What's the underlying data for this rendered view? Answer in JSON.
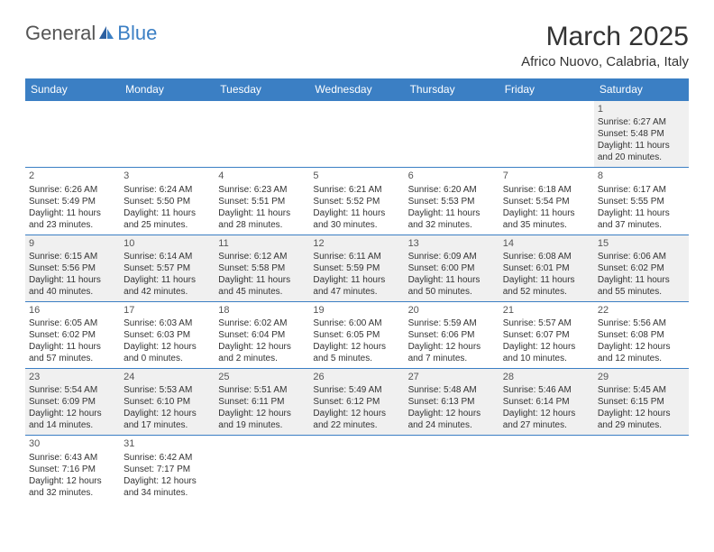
{
  "brand": {
    "part1": "General",
    "part2": "Blue"
  },
  "title": "March 2025",
  "location": "Africo Nuovo, Calabria, Italy",
  "colors": {
    "header_bg": "#3b7fc4",
    "header_text": "#ffffff",
    "border": "#3b7fc4",
    "shade": "#f0f0f0",
    "text": "#333333"
  },
  "day_headers": [
    "Sunday",
    "Monday",
    "Tuesday",
    "Wednesday",
    "Thursday",
    "Friday",
    "Saturday"
  ],
  "weeks": [
    [
      null,
      null,
      null,
      null,
      null,
      null,
      {
        "n": "1",
        "sr": "Sunrise: 6:27 AM",
        "ss": "Sunset: 5:48 PM",
        "dl": "Daylight: 11 hours and 20 minutes."
      }
    ],
    [
      {
        "n": "2",
        "sr": "Sunrise: 6:26 AM",
        "ss": "Sunset: 5:49 PM",
        "dl": "Daylight: 11 hours and 23 minutes."
      },
      {
        "n": "3",
        "sr": "Sunrise: 6:24 AM",
        "ss": "Sunset: 5:50 PM",
        "dl": "Daylight: 11 hours and 25 minutes."
      },
      {
        "n": "4",
        "sr": "Sunrise: 6:23 AM",
        "ss": "Sunset: 5:51 PM",
        "dl": "Daylight: 11 hours and 28 minutes."
      },
      {
        "n": "5",
        "sr": "Sunrise: 6:21 AM",
        "ss": "Sunset: 5:52 PM",
        "dl": "Daylight: 11 hours and 30 minutes."
      },
      {
        "n": "6",
        "sr": "Sunrise: 6:20 AM",
        "ss": "Sunset: 5:53 PM",
        "dl": "Daylight: 11 hours and 32 minutes."
      },
      {
        "n": "7",
        "sr": "Sunrise: 6:18 AM",
        "ss": "Sunset: 5:54 PM",
        "dl": "Daylight: 11 hours and 35 minutes."
      },
      {
        "n": "8",
        "sr": "Sunrise: 6:17 AM",
        "ss": "Sunset: 5:55 PM",
        "dl": "Daylight: 11 hours and 37 minutes."
      }
    ],
    [
      {
        "n": "9",
        "sr": "Sunrise: 6:15 AM",
        "ss": "Sunset: 5:56 PM",
        "dl": "Daylight: 11 hours and 40 minutes."
      },
      {
        "n": "10",
        "sr": "Sunrise: 6:14 AM",
        "ss": "Sunset: 5:57 PM",
        "dl": "Daylight: 11 hours and 42 minutes."
      },
      {
        "n": "11",
        "sr": "Sunrise: 6:12 AM",
        "ss": "Sunset: 5:58 PM",
        "dl": "Daylight: 11 hours and 45 minutes."
      },
      {
        "n": "12",
        "sr": "Sunrise: 6:11 AM",
        "ss": "Sunset: 5:59 PM",
        "dl": "Daylight: 11 hours and 47 minutes."
      },
      {
        "n": "13",
        "sr": "Sunrise: 6:09 AM",
        "ss": "Sunset: 6:00 PM",
        "dl": "Daylight: 11 hours and 50 minutes."
      },
      {
        "n": "14",
        "sr": "Sunrise: 6:08 AM",
        "ss": "Sunset: 6:01 PM",
        "dl": "Daylight: 11 hours and 52 minutes."
      },
      {
        "n": "15",
        "sr": "Sunrise: 6:06 AM",
        "ss": "Sunset: 6:02 PM",
        "dl": "Daylight: 11 hours and 55 minutes."
      }
    ],
    [
      {
        "n": "16",
        "sr": "Sunrise: 6:05 AM",
        "ss": "Sunset: 6:02 PM",
        "dl": "Daylight: 11 hours and 57 minutes."
      },
      {
        "n": "17",
        "sr": "Sunrise: 6:03 AM",
        "ss": "Sunset: 6:03 PM",
        "dl": "Daylight: 12 hours and 0 minutes."
      },
      {
        "n": "18",
        "sr": "Sunrise: 6:02 AM",
        "ss": "Sunset: 6:04 PM",
        "dl": "Daylight: 12 hours and 2 minutes."
      },
      {
        "n": "19",
        "sr": "Sunrise: 6:00 AM",
        "ss": "Sunset: 6:05 PM",
        "dl": "Daylight: 12 hours and 5 minutes."
      },
      {
        "n": "20",
        "sr": "Sunrise: 5:59 AM",
        "ss": "Sunset: 6:06 PM",
        "dl": "Daylight: 12 hours and 7 minutes."
      },
      {
        "n": "21",
        "sr": "Sunrise: 5:57 AM",
        "ss": "Sunset: 6:07 PM",
        "dl": "Daylight: 12 hours and 10 minutes."
      },
      {
        "n": "22",
        "sr": "Sunrise: 5:56 AM",
        "ss": "Sunset: 6:08 PM",
        "dl": "Daylight: 12 hours and 12 minutes."
      }
    ],
    [
      {
        "n": "23",
        "sr": "Sunrise: 5:54 AM",
        "ss": "Sunset: 6:09 PM",
        "dl": "Daylight: 12 hours and 14 minutes."
      },
      {
        "n": "24",
        "sr": "Sunrise: 5:53 AM",
        "ss": "Sunset: 6:10 PM",
        "dl": "Daylight: 12 hours and 17 minutes."
      },
      {
        "n": "25",
        "sr": "Sunrise: 5:51 AM",
        "ss": "Sunset: 6:11 PM",
        "dl": "Daylight: 12 hours and 19 minutes."
      },
      {
        "n": "26",
        "sr": "Sunrise: 5:49 AM",
        "ss": "Sunset: 6:12 PM",
        "dl": "Daylight: 12 hours and 22 minutes."
      },
      {
        "n": "27",
        "sr": "Sunrise: 5:48 AM",
        "ss": "Sunset: 6:13 PM",
        "dl": "Daylight: 12 hours and 24 minutes."
      },
      {
        "n": "28",
        "sr": "Sunrise: 5:46 AM",
        "ss": "Sunset: 6:14 PM",
        "dl": "Daylight: 12 hours and 27 minutes."
      },
      {
        "n": "29",
        "sr": "Sunrise: 5:45 AM",
        "ss": "Sunset: 6:15 PM",
        "dl": "Daylight: 12 hours and 29 minutes."
      }
    ],
    [
      {
        "n": "30",
        "sr": "Sunrise: 6:43 AM",
        "ss": "Sunset: 7:16 PM",
        "dl": "Daylight: 12 hours and 32 minutes."
      },
      {
        "n": "31",
        "sr": "Sunrise: 6:42 AM",
        "ss": "Sunset: 7:17 PM",
        "dl": "Daylight: 12 hours and 34 minutes."
      },
      null,
      null,
      null,
      null,
      null
    ]
  ]
}
